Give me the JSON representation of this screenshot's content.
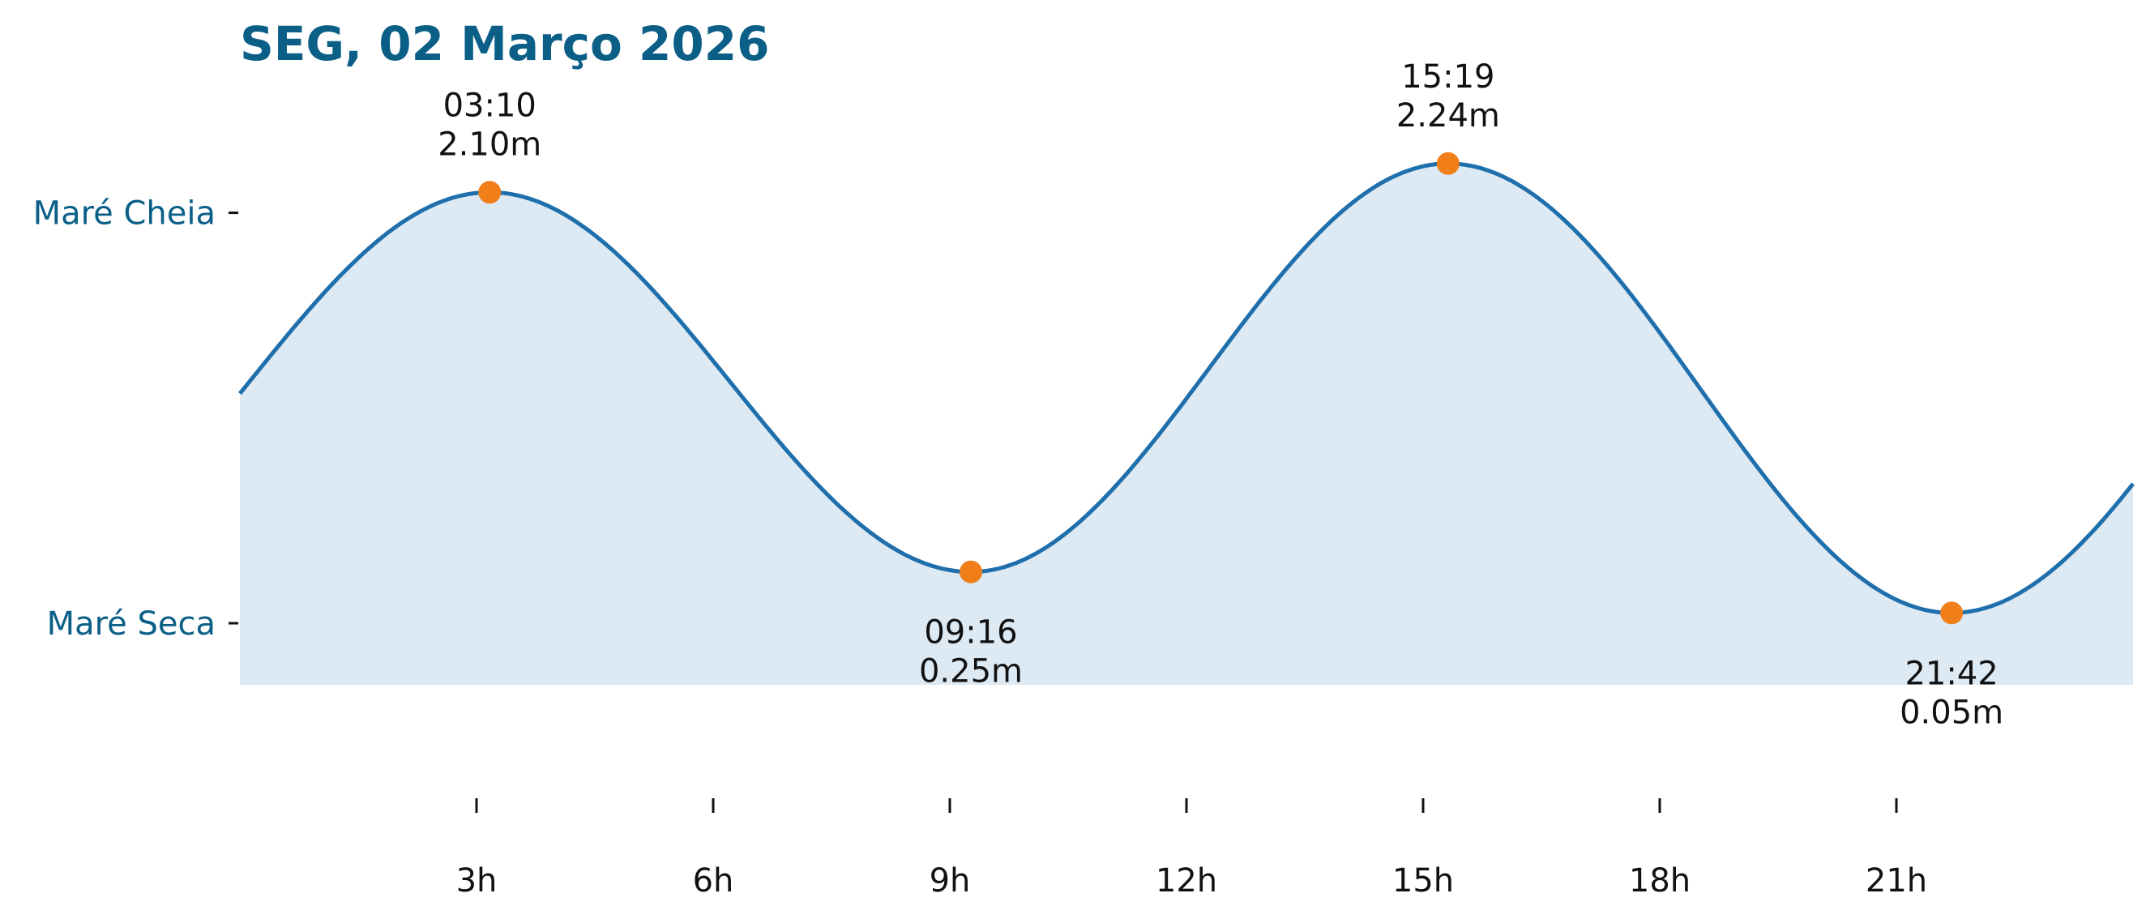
{
  "chart_data": {
    "type": "area",
    "title": "SEG, 02 Março 2026",
    "xlabel": "",
    "ylabel": "",
    "xlim": [
      0,
      24
    ],
    "ylim": [
      -0.3,
      2.8
    ],
    "grid": false,
    "legend": "none",
    "x_ticks": [
      {
        "value": 3,
        "label": "3h"
      },
      {
        "value": 6,
        "label": "6h"
      },
      {
        "value": 9,
        "label": "9h"
      },
      {
        "value": 12,
        "label": "12h"
      },
      {
        "value": 15,
        "label": "15h"
      },
      {
        "value": 18,
        "label": "18h"
      },
      {
        "value": 21,
        "label": "21h"
      }
    ],
    "y_ticks": [
      {
        "value": 2.0,
        "label": "Maré Cheia"
      },
      {
        "value": 0.0,
        "label": "Maré Seca"
      }
    ],
    "extremes": [
      {
        "time": "03:10",
        "x": 3.167,
        "height": 2.1,
        "value_label": "2.10m",
        "kind": "high"
      },
      {
        "time": "09:16",
        "x": 9.267,
        "height": 0.25,
        "value_label": "0.25m",
        "kind": "low"
      },
      {
        "time": "15:19",
        "x": 15.317,
        "height": 2.24,
        "value_label": "2.24m",
        "kind": "high"
      },
      {
        "time": "21:42",
        "x": 21.7,
        "height": 0.05,
        "value_label": "0.05m",
        "kind": "low"
      }
    ],
    "colors": {
      "line": "#1f6fad",
      "fill": "#dde9f3",
      "marker": "#f07f1a",
      "title": "#0b5f87",
      "ytick_label": "#0b5f87",
      "text": "#111111"
    }
  }
}
